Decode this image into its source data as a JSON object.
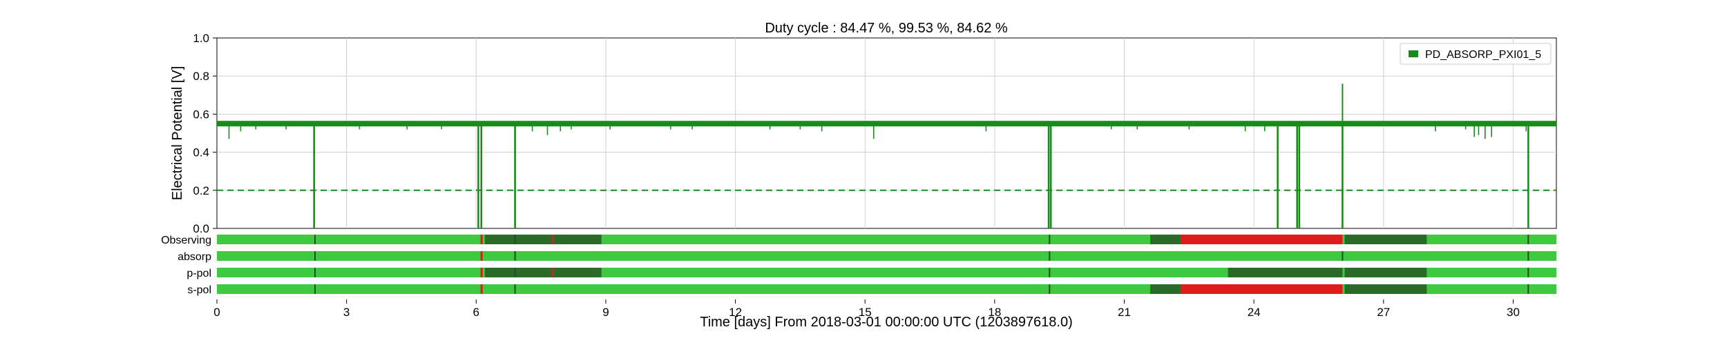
{
  "chart_data": {
    "type": "line",
    "title": "Duty cycle : 84.47 %, 99.53 %, 84.62 %",
    "xlabel": "Time [days] From 2018-03-01 00:00:00 UTC (1203897618.0)",
    "ylabel": "Electrical Potential [V]",
    "xlim": [
      0,
      31
    ],
    "ylim": [
      0,
      1.0
    ],
    "x_ticks": [
      0,
      3,
      6,
      9,
      12,
      15,
      18,
      21,
      24,
      27,
      30
    ],
    "y_ticks": [
      0.0,
      0.2,
      0.4,
      0.6,
      0.8,
      1.0
    ],
    "grid": true,
    "legend_position": "top-right",
    "threshold": 0.2,
    "series": [
      {
        "name": "PD_ABSORP_PXI01_5",
        "color": "#1a8a1a",
        "baseline": 0.55,
        "dips": [
          {
            "x": 0.28,
            "y": 0.47
          },
          {
            "x": 0.55,
            "y": 0.51
          },
          {
            "x": 0.9,
            "y": 0.52
          },
          {
            "x": 1.6,
            "y": 0.52
          },
          {
            "x": 2.25,
            "y": 0.0
          },
          {
            "x": 3.3,
            "y": 0.52
          },
          {
            "x": 4.4,
            "y": 0.52
          },
          {
            "x": 5.2,
            "y": 0.52
          },
          {
            "x": 6.05,
            "y": 0.0
          },
          {
            "x": 6.12,
            "y": 0.0
          },
          {
            "x": 6.9,
            "y": 0.0
          },
          {
            "x": 7.3,
            "y": 0.51
          },
          {
            "x": 7.65,
            "y": 0.49
          },
          {
            "x": 7.95,
            "y": 0.51
          },
          {
            "x": 8.2,
            "y": 0.52
          },
          {
            "x": 9.1,
            "y": 0.52
          },
          {
            "x": 10.5,
            "y": 0.52
          },
          {
            "x": 11.0,
            "y": 0.52
          },
          {
            "x": 12.8,
            "y": 0.52
          },
          {
            "x": 13.5,
            "y": 0.52
          },
          {
            "x": 14.0,
            "y": 0.51
          },
          {
            "x": 15.2,
            "y": 0.47
          },
          {
            "x": 17.8,
            "y": 0.51
          },
          {
            "x": 19.25,
            "y": 0.0
          },
          {
            "x": 19.3,
            "y": 0.0
          },
          {
            "x": 20.7,
            "y": 0.52
          },
          {
            "x": 21.3,
            "y": 0.52
          },
          {
            "x": 22.5,
            "y": 0.52
          },
          {
            "x": 23.8,
            "y": 0.51
          },
          {
            "x": 24.25,
            "y": 0.51
          },
          {
            "x": 24.55,
            "y": 0.0
          },
          {
            "x": 25.0,
            "y": 0.0
          },
          {
            "x": 25.05,
            "y": 0.0
          },
          {
            "x": 26.05,
            "y": 0.0
          },
          {
            "x": 28.2,
            "y": 0.51
          },
          {
            "x": 28.9,
            "y": 0.52
          },
          {
            "x": 29.1,
            "y": 0.48
          },
          {
            "x": 29.2,
            "y": 0.49
          },
          {
            "x": 29.35,
            "y": 0.47
          },
          {
            "x": 29.5,
            "y": 0.48
          },
          {
            "x": 30.3,
            "y": 0.51
          },
          {
            "x": 30.35,
            "y": 0.0
          }
        ],
        "spikes": [
          {
            "x": 26.05,
            "y": 0.76
          }
        ]
      }
    ],
    "state_bars": {
      "colors": {
        "active": "#3ec93e",
        "partial": "#2a6b2a",
        "inactive": "#e01b1b"
      },
      "rows": [
        {
          "name": "Observing",
          "segments": [
            {
              "start": 6.1,
              "end": 6.15,
              "state": "inactive"
            },
            {
              "start": 6.2,
              "end": 8.9,
              "state": "partial"
            },
            {
              "start": 7.75,
              "end": 7.8,
              "state": "inactive"
            },
            {
              "start": 21.6,
              "end": 22.3,
              "state": "partial"
            },
            {
              "start": 22.3,
              "end": 26.05,
              "state": "inactive"
            },
            {
              "start": 26.1,
              "end": 28.0,
              "state": "partial"
            }
          ],
          "markers": [
            2.27,
            6.9,
            19.27,
            30.35
          ]
        },
        {
          "name": "absorp",
          "segments": [
            {
              "start": 6.1,
              "end": 6.15,
              "state": "inactive"
            }
          ],
          "markers": [
            2.27,
            6.9,
            19.27,
            26.05,
            30.35
          ]
        },
        {
          "name": "p-pol",
          "segments": [
            {
              "start": 6.1,
              "end": 6.15,
              "state": "inactive"
            },
            {
              "start": 6.2,
              "end": 8.9,
              "state": "partial"
            },
            {
              "start": 7.75,
              "end": 7.8,
              "state": "inactive"
            },
            {
              "start": 23.4,
              "end": 26.05,
              "state": "partial"
            },
            {
              "start": 26.1,
              "end": 28.0,
              "state": "partial"
            }
          ],
          "markers": [
            2.27,
            6.9,
            19.27,
            30.35
          ]
        },
        {
          "name": "s-pol",
          "segments": [
            {
              "start": 6.1,
              "end": 6.15,
              "state": "inactive"
            },
            {
              "start": 21.6,
              "end": 22.3,
              "state": "partial"
            },
            {
              "start": 22.3,
              "end": 26.05,
              "state": "inactive"
            },
            {
              "start": 26.1,
              "end": 28.0,
              "state": "partial"
            }
          ],
          "markers": [
            2.27,
            6.9,
            19.27,
            30.35
          ]
        }
      ]
    }
  }
}
